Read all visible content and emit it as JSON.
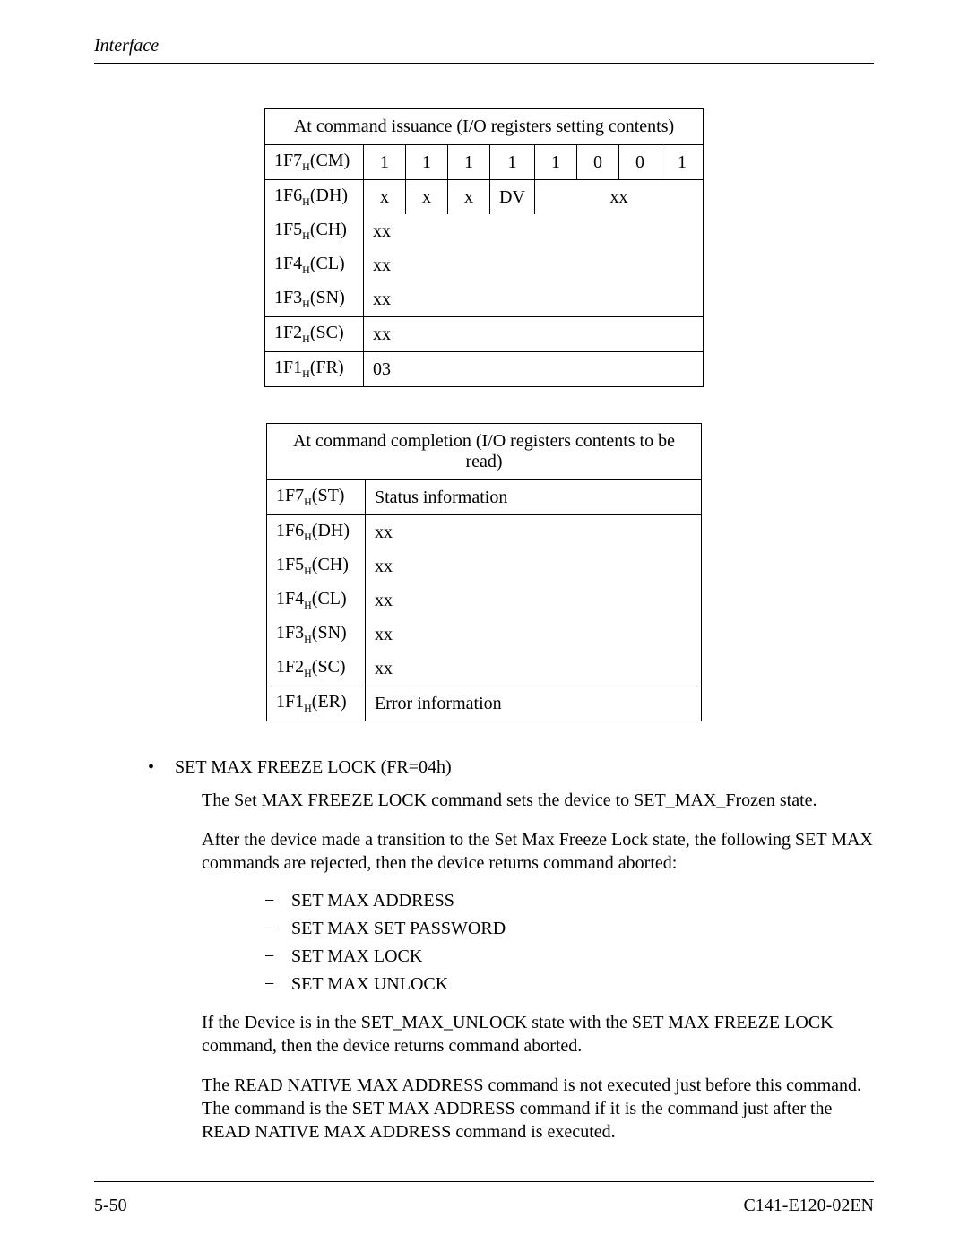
{
  "header": {
    "title": "Interface"
  },
  "table1": {
    "title": "At command issuance (I/O registers setting contents)",
    "rows": [
      {
        "label_base": "1F7",
        "label_sub": "H",
        "label_suffix": "(CM)",
        "cells": [
          "1",
          "1",
          "1",
          "1",
          "1",
          "0",
          "0",
          "1"
        ],
        "span": [
          1,
          1,
          1,
          1,
          1,
          1,
          1,
          1
        ],
        "group": "solo"
      },
      {
        "label_base": "1F6",
        "label_sub": "H",
        "label_suffix": "(DH)",
        "cells": [
          "x",
          "x",
          "x",
          "DV",
          "xx"
        ],
        "span": [
          1,
          1,
          1,
          1,
          4
        ],
        "group": "top"
      },
      {
        "label_base": "1F5",
        "label_sub": "H",
        "label_suffix": "(CH)",
        "cells": [
          "xx"
        ],
        "span": [
          8
        ],
        "group": "mid"
      },
      {
        "label_base": "1F4",
        "label_sub": "H",
        "label_suffix": "(CL)",
        "cells": [
          "xx"
        ],
        "span": [
          8
        ],
        "group": "mid"
      },
      {
        "label_base": "1F3",
        "label_sub": "H",
        "label_suffix": "(SN)",
        "cells": [
          "xx"
        ],
        "span": [
          8
        ],
        "group": "bot"
      },
      {
        "label_base": "1F2",
        "label_sub": "H",
        "label_suffix": "(SC)",
        "cells": [
          "xx"
        ],
        "span": [
          8
        ],
        "group": "solo"
      },
      {
        "label_base": "1F1",
        "label_sub": "H",
        "label_suffix": "(FR)",
        "cells": [
          "03"
        ],
        "span": [
          8
        ],
        "group": "solo"
      }
    ]
  },
  "table2": {
    "title": "At command completion (I/O registers contents to be read)",
    "rows": [
      {
        "label_base": "1F7",
        "label_sub": "H",
        "label_suffix": "(ST)",
        "value": "Status information",
        "group": "solo"
      },
      {
        "label_base": "1F6",
        "label_sub": "H",
        "label_suffix": "(DH)",
        "value": "xx",
        "group": "top"
      },
      {
        "label_base": "1F5",
        "label_sub": "H",
        "label_suffix": "(CH)",
        "value": "xx",
        "group": "mid"
      },
      {
        "label_base": "1F4",
        "label_sub": "H",
        "label_suffix": "(CL)",
        "value": "xx",
        "group": "mid"
      },
      {
        "label_base": "1F3",
        "label_sub": "H",
        "label_suffix": "(SN)",
        "value": "xx",
        "group": "mid"
      },
      {
        "label_base": "1F2",
        "label_sub": "H",
        "label_suffix": "(SC)",
        "value": "xx",
        "group": "bot"
      },
      {
        "label_base": "1F1",
        "label_sub": "H",
        "label_suffix": "(ER)",
        "value": "Error information",
        "group": "solo"
      }
    ]
  },
  "section": {
    "bullet_title": "SET MAX FREEZE LOCK (FR=04h)",
    "para1": "The Set MAX FREEZE LOCK command sets the device to SET_MAX_Frozen state.",
    "para2": "After the device made a transition to the Set Max Freeze Lock state, the following SET MAX commands are rejected, then the device returns command aborted:",
    "dash_items": [
      "SET MAX ADDRESS",
      "SET MAX SET PASSWORD",
      "SET MAX LOCK",
      "SET MAX UNLOCK"
    ],
    "para3": "If the Device is in the SET_MAX_UNLOCK state with the SET MAX FREEZE LOCK command, then the device returns command aborted.",
    "para4": "The READ NATIVE MAX ADDRESS command is not executed just before this command.  The command is the SET MAX ADDRESS command if it is the command just after the READ NATIVE MAX ADDRESS command is executed."
  },
  "footer": {
    "page": "5-50",
    "doc": "C141-E120-02EN"
  },
  "glyphs": {
    "bullet": "•",
    "dash": "−"
  }
}
